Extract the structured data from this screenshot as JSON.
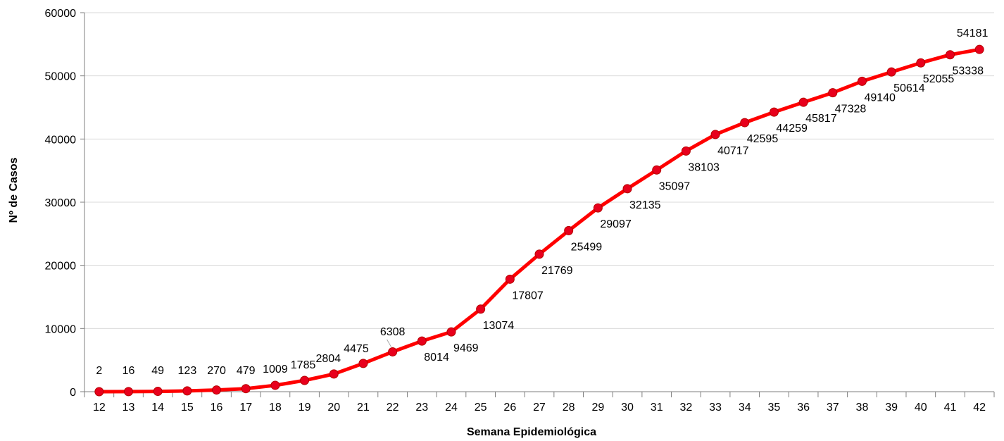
{
  "chart_data": {
    "type": "line",
    "xlabel": "Semana Epidemiológica",
    "ylabel": "Nº de Casos",
    "ylim": [
      0,
      60000
    ],
    "yticks": [
      "0",
      "10000",
      "20000",
      "30000",
      "40000",
      "50000",
      "60000"
    ],
    "grid": "horizontal",
    "legend": "none",
    "line_color": "#ff0000",
    "marker_color": "#e8001c",
    "categories": [
      "12",
      "13",
      "14",
      "15",
      "16",
      "17",
      "18",
      "19",
      "20",
      "21",
      "22",
      "23",
      "24",
      "25",
      "26",
      "27",
      "28",
      "29",
      "30",
      "31",
      "32",
      "33",
      "34",
      "35",
      "36",
      "37",
      "38",
      "39",
      "40",
      "41",
      "42"
    ],
    "values": [
      2,
      16,
      49,
      123,
      270,
      479,
      1009,
      1785,
      2804,
      4475,
      6308,
      8014,
      9469,
      13074,
      17807,
      21769,
      25499,
      29097,
      32135,
      35097,
      38103,
      40717,
      42595,
      44259,
      45817,
      47328,
      49140,
      50614,
      52055,
      53338,
      54181
    ],
    "data_labels": [
      "2",
      "16",
      "49",
      "123",
      "270",
      "479",
      "1009",
      "1785",
      "2804",
      "4475",
      "6308",
      "8014",
      "9469",
      "13074",
      "17807",
      "21769",
      "25499",
      "29097",
      "32135",
      "35097",
      "38103",
      "40717",
      "42595",
      "44259",
      "45817",
      "47328",
      "49140",
      "50614",
      "52055",
      "53338",
      "54181"
    ]
  }
}
